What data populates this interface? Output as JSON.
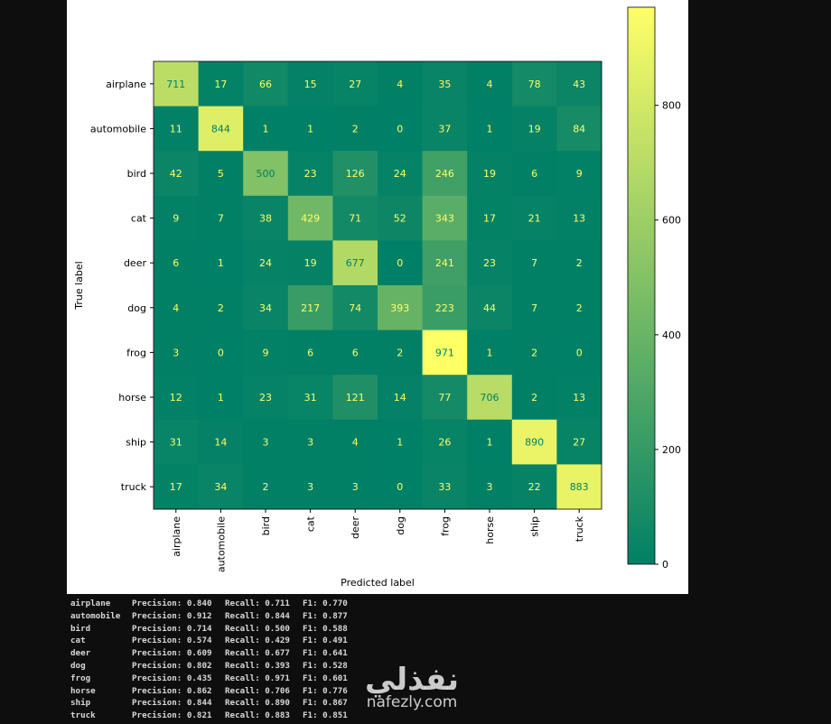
{
  "chart_data": {
    "type": "heatmap",
    "title": "",
    "xlabel": "Predicted label",
    "ylabel": "True label",
    "categories": [
      "airplane",
      "automobile",
      "bird",
      "cat",
      "deer",
      "dog",
      "frog",
      "horse",
      "ship",
      "truck"
    ],
    "matrix": [
      [
        711,
        17,
        66,
        15,
        27,
        4,
        35,
        4,
        78,
        43
      ],
      [
        11,
        844,
        1,
        1,
        2,
        0,
        37,
        1,
        19,
        84
      ],
      [
        42,
        5,
        500,
        23,
        126,
        24,
        246,
        19,
        6,
        9
      ],
      [
        9,
        7,
        38,
        429,
        71,
        52,
        343,
        17,
        21,
        13
      ],
      [
        6,
        1,
        24,
        19,
        677,
        0,
        241,
        23,
        7,
        2
      ],
      [
        4,
        2,
        34,
        217,
        74,
        393,
        223,
        44,
        7,
        2
      ],
      [
        3,
        0,
        9,
        6,
        6,
        2,
        971,
        1,
        2,
        0
      ],
      [
        12,
        1,
        23,
        31,
        121,
        14,
        77,
        706,
        2,
        13
      ],
      [
        31,
        14,
        3,
        3,
        4,
        1,
        26,
        1,
        890,
        27
      ],
      [
        17,
        34,
        2,
        3,
        3,
        0,
        33,
        3,
        22,
        883
      ]
    ],
    "colormap": "summer",
    "colorbar": {
      "range": [
        0,
        971
      ],
      "ticks": [
        0,
        200,
        400,
        600,
        800
      ]
    }
  },
  "report": [
    {
      "label": "airplane",
      "precision": "Precision: 0.840",
      "recall": "Recall: 0.711",
      "f1": "F1: 0.770"
    },
    {
      "label": "automobile",
      "precision": "Precision: 0.912",
      "recall": "Recall: 0.844",
      "f1": "F1: 0.877"
    },
    {
      "label": "bird",
      "precision": "Precision: 0.714",
      "recall": "Recall: 0.500",
      "f1": "F1: 0.588"
    },
    {
      "label": "cat",
      "precision": "Precision: 0.574",
      "recall": "Recall: 0.429",
      "f1": "F1: 0.491"
    },
    {
      "label": "deer",
      "precision": "Precision: 0.609",
      "recall": "Recall: 0.677",
      "f1": "F1: 0.641"
    },
    {
      "label": "dog",
      "precision": "Precision: 0.802",
      "recall": "Recall: 0.393",
      "f1": "F1: 0.528"
    },
    {
      "label": "frog",
      "precision": "Precision: 0.435",
      "recall": "Recall: 0.971",
      "f1": "F1: 0.601"
    },
    {
      "label": "horse",
      "precision": "Precision: 0.862",
      "recall": "Recall: 0.706",
      "f1": "F1: 0.776"
    },
    {
      "label": "ship",
      "precision": "Precision: 0.844",
      "recall": "Recall: 0.890",
      "f1": "F1: 0.867"
    },
    {
      "label": "truck",
      "precision": "Precision: 0.821",
      "recall": "Recall: 0.883",
      "f1": "F1: 0.851"
    }
  ],
  "watermark": {
    "arabic": "نفذلي",
    "site": "nafezly.com"
  }
}
